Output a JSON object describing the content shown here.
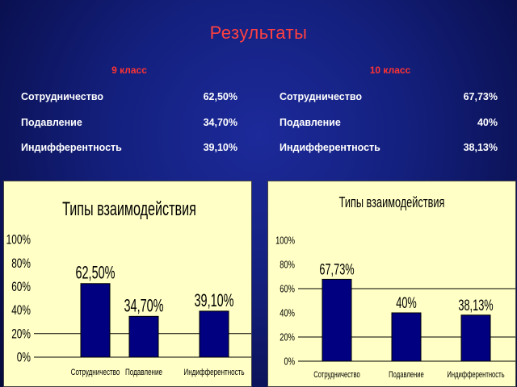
{
  "page": {
    "title": "Результаты"
  },
  "table": {
    "groups": [
      {
        "heading": "9 класс",
        "rows": [
          {
            "label": "Сотрудничество",
            "value": "62,50%"
          },
          {
            "label": "Подавление",
            "value": "34,70%"
          },
          {
            "label": "Индифферентность",
            "value": "39,10%"
          }
        ]
      },
      {
        "heading": "10 класс",
        "rows": [
          {
            "label": "Сотрудничество",
            "value": "67,73%"
          },
          {
            "label": "Подавление",
            "value": "40%"
          },
          {
            "label": "Индифферентность",
            "value": "38,13%"
          }
        ]
      }
    ]
  },
  "colors": {
    "bar": "#000080",
    "panel_bg": "#ffffc6",
    "title": "#ff4040",
    "heading": "#ff3333"
  },
  "chart_data": [
    {
      "type": "bar",
      "title": "Типы взаимодействия",
      "categories": [
        "Сотрудничество",
        "Подавление",
        "Индифферентность"
      ],
      "values": [
        62.5,
        34.7,
        39.1
      ],
      "data_labels": [
        "62,50%",
        "34,70%",
        "39,10%"
      ],
      "y_ticks": [
        "0%",
        "20%",
        "40%",
        "60%",
        "80%",
        "100%"
      ],
      "ylim": [
        0,
        100
      ],
      "grid": "major y lines",
      "legend": "none"
    },
    {
      "type": "bar",
      "title": "Типы взаимодействия",
      "categories": [
        "Сотрудничество",
        "Подавление",
        "Индифферентность"
      ],
      "values": [
        67.73,
        40,
        38.13
      ],
      "data_labels": [
        "67,73%",
        "40%",
        "38,13%"
      ],
      "y_ticks": [
        "0%",
        "20%",
        "40%",
        "60%",
        "80%",
        "100%"
      ],
      "ylim": [
        0,
        100
      ],
      "grid": "major y lines",
      "legend": "none"
    }
  ]
}
